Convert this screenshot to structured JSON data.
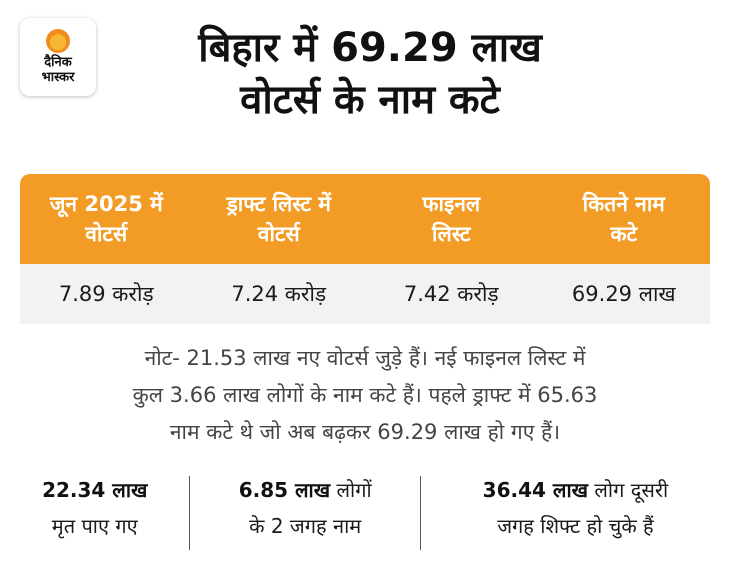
{
  "logo": {
    "line1": "दैनिक",
    "line2": "भास्कर",
    "sun_color": "#f28b1d"
  },
  "title": {
    "line1": "बिहार में 69.29 लाख",
    "line2": "वोटर्स के नाम कटे"
  },
  "table": {
    "header_color": "#f39c25",
    "headers": [
      {
        "line1": "जून 2025 में",
        "line2": "वोटर्स"
      },
      {
        "line1": "ड्राफ्ट लिस्ट में",
        "line2": "वोटर्स"
      },
      {
        "line1": "फाइनल",
        "line2": "लिस्ट"
      },
      {
        "line1": "कितने नाम",
        "line2": "कटे"
      }
    ],
    "values": [
      "7.89 करोड़",
      "7.24 करोड़",
      "7.42 करोड़",
      "69.29  लाख"
    ]
  },
  "note": {
    "line1": "नोट- 21.53 लाख नए वोटर्स  जुड़े हैं। नई फाइनल लिस्ट में",
    "line2": "कुल 3.66 लाख लोगों के नाम कटे हैं। पहले ड्राफ्ट में 65.63",
    "line3": "नाम कटे थे जो अब बढ़कर 69.29 लाख हो गए हैं।"
  },
  "stats": [
    {
      "bold": "22.34 लाख",
      "rest1": "",
      "line2": "मृत पाए गए"
    },
    {
      "bold": "6.85 लाख",
      "rest1": " लोगों",
      "line2": "के 2 जगह नाम"
    },
    {
      "bold": "36.44 लाख",
      "rest1": " लोग दूसरी",
      "line2": "जगह शिफ्ट हो चुके हैं"
    }
  ]
}
